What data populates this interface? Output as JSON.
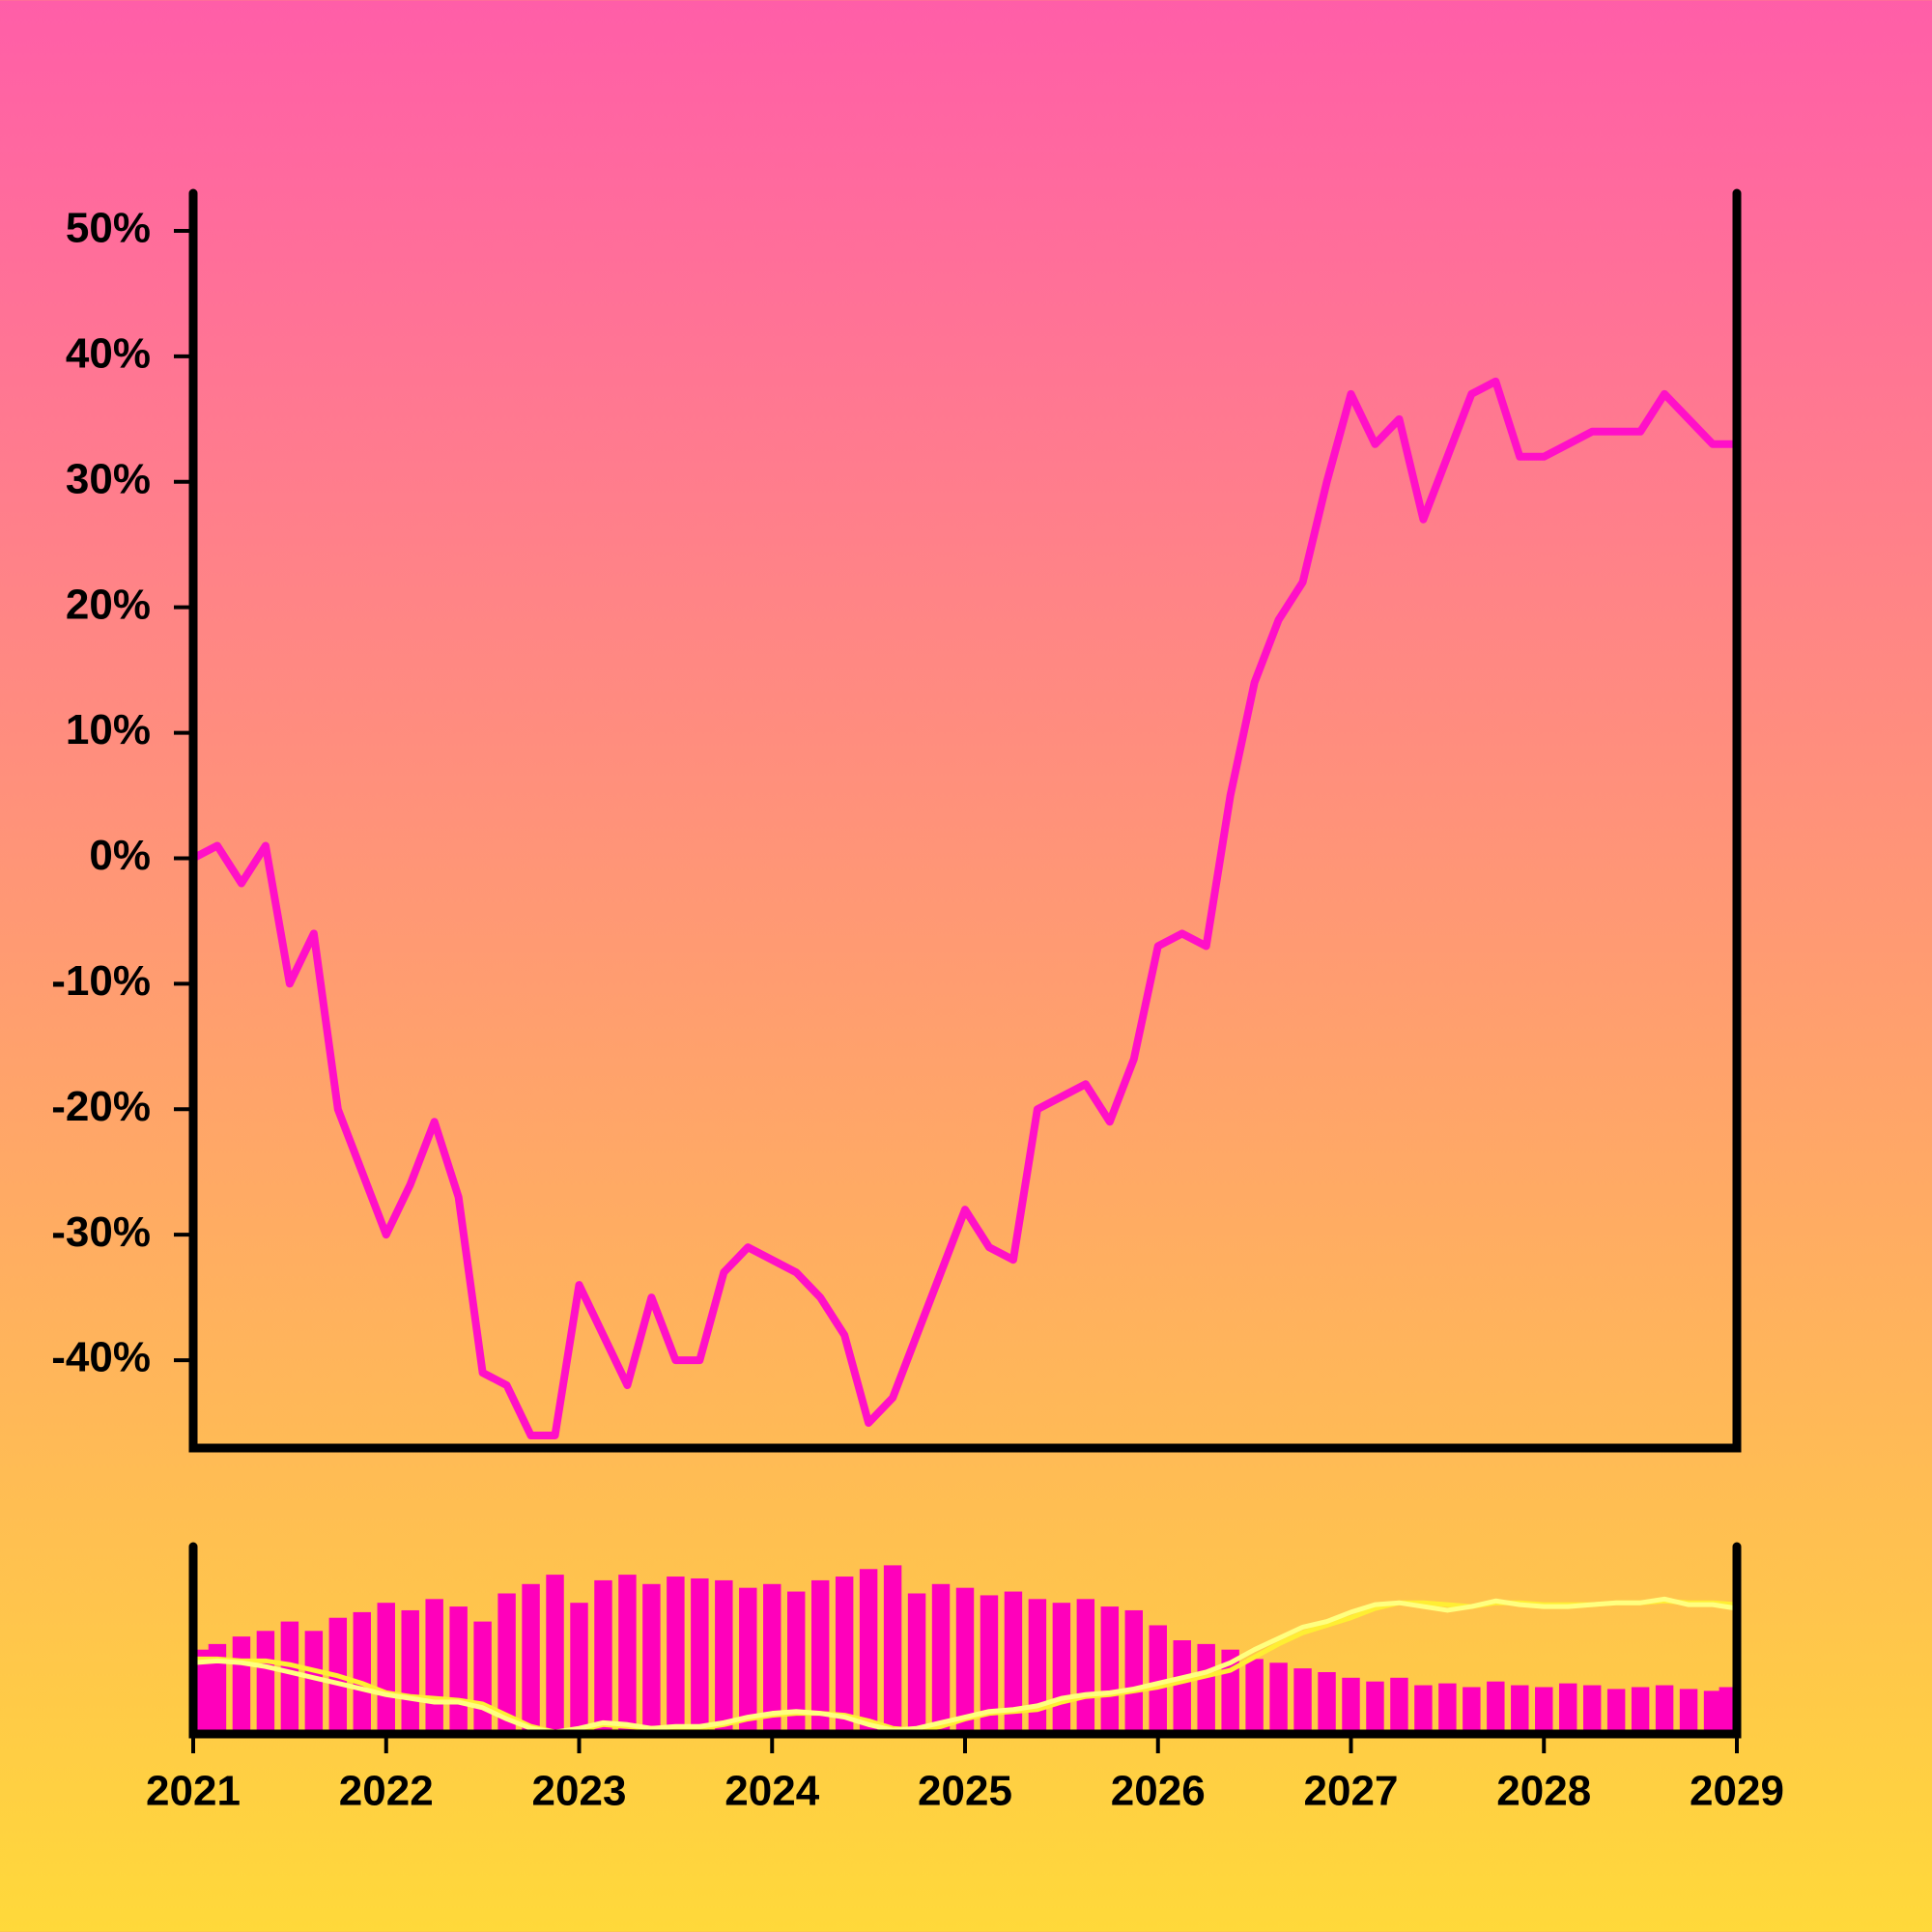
{
  "chart_data": [
    {
      "type": "line",
      "color": "#ff10c8",
      "x": [
        2021,
        2021.125,
        2021.25,
        2021.375,
        2021.5,
        2021.625,
        2021.75,
        2021.875,
        2022,
        2022.125,
        2022.25,
        2022.375,
        2022.5,
        2022.625,
        2022.75,
        2022.875,
        2023,
        2023.125,
        2023.25,
        2023.375,
        2023.5,
        2023.625,
        2023.75,
        2023.875,
        2024,
        2024.125,
        2024.25,
        2024.375,
        2024.5,
        2024.625,
        2024.75,
        2024.875,
        2025,
        2025.125,
        2025.25,
        2025.375,
        2025.5,
        2025.625,
        2025.75,
        2025.875,
        2026,
        2026.125,
        2026.25,
        2026.375,
        2026.5,
        2026.625,
        2026.75,
        2026.875,
        2027,
        2027.125,
        2027.25,
        2027.375,
        2027.5,
        2027.625,
        2027.75,
        2027.875,
        2028,
        2028.125,
        2028.25,
        2028.375,
        2028.5,
        2028.625,
        2028.75,
        2028.875,
        2029
      ],
      "values": [
        0,
        1,
        -2,
        1,
        -10,
        -6,
        -20,
        -25,
        -30,
        -26,
        -21,
        -27,
        -41,
        -42,
        -46,
        -46,
        -34,
        -38,
        -42,
        -35,
        -40,
        -40,
        -33,
        -31,
        -32,
        -33,
        -35,
        -38,
        -45,
        -43,
        -38,
        -33,
        -28,
        -31,
        -32,
        -20,
        -19,
        -18,
        -21,
        -16,
        -7,
        -6,
        -7,
        5,
        14,
        19,
        22,
        30,
        37,
        33,
        35,
        27,
        32,
        37,
        38,
        32,
        32,
        33,
        34,
        34,
        34,
        37,
        35,
        33,
        33
      ],
      "xlim": [
        2021,
        2029
      ],
      "ylim": [
        -47,
        53
      ],
      "yticks": [
        {
          "value": -40,
          "label": "-40%"
        },
        {
          "value": -30,
          "label": "-30%"
        },
        {
          "value": -20,
          "label": "-20%"
        },
        {
          "value": -10,
          "label": "-10%"
        },
        {
          "value": 0,
          "label": "0%"
        },
        {
          "value": 10,
          "label": "10%"
        },
        {
          "value": 20,
          "label": "20%"
        },
        {
          "value": 30,
          "label": "30%"
        },
        {
          "value": 40,
          "label": "40%"
        },
        {
          "value": 50,
          "label": "50%"
        }
      ]
    },
    {
      "type": "bar",
      "color": "#ff00bb",
      "x": [
        2021,
        2021.125,
        2021.25,
        2021.375,
        2021.5,
        2021.625,
        2021.75,
        2021.875,
        2022,
        2022.125,
        2022.25,
        2022.375,
        2022.5,
        2022.625,
        2022.75,
        2022.875,
        2023,
        2023.125,
        2023.25,
        2023.375,
        2023.5,
        2023.625,
        2023.75,
        2023.875,
        2024,
        2024.125,
        2024.25,
        2024.375,
        2024.5,
        2024.625,
        2024.75,
        2024.875,
        2025,
        2025.125,
        2025.25,
        2025.375,
        2025.5,
        2025.625,
        2025.75,
        2025.875,
        2026,
        2026.125,
        2026.25,
        2026.375,
        2026.5,
        2026.625,
        2026.75,
        2026.875,
        2027,
        2027.125,
        2027.25,
        2027.375,
        2027.5,
        2027.625,
        2027.75,
        2027.875,
        2028,
        2028.125,
        2028.25,
        2028.375,
        2028.5,
        2028.625,
        2028.75,
        2028.875,
        2029
      ],
      "values": [
        45,
        48,
        52,
        55,
        60,
        55,
        62,
        65,
        70,
        66,
        72,
        68,
        60,
        75,
        80,
        85,
        70,
        82,
        85,
        80,
        84,
        83,
        82,
        78,
        80,
        76,
        82,
        84,
        88,
        90,
        75,
        80,
        78,
        74,
        76,
        72,
        70,
        72,
        68,
        66,
        58,
        50,
        48,
        45,
        40,
        38,
        35,
        33,
        30,
        28,
        30,
        26,
        27,
        25,
        28,
        26,
        25,
        27,
        26,
        24,
        25,
        26,
        24,
        23,
        25
      ],
      "overlay": [
        {
          "color": "#ffee33",
          "values": [
            40,
            40,
            39,
            39,
            37,
            34,
            31,
            27,
            22,
            20,
            19,
            18,
            16,
            10,
            4,
            1,
            2,
            5,
            4,
            3,
            3,
            3,
            5,
            8,
            10,
            11,
            11,
            10,
            7,
            3,
            2,
            4,
            8,
            11,
            12,
            13,
            17,
            20,
            21,
            23,
            25,
            28,
            31,
            34,
            41,
            48,
            54,
            58,
            62,
            67,
            70,
            70,
            69,
            68,
            70,
            70,
            69,
            69,
            69,
            70,
            70,
            71,
            70,
            70,
            69
          ]
        },
        {
          "color": "#ffff80",
          "values": [
            38,
            39,
            38,
            36,
            33,
            30,
            27,
            24,
            21,
            19,
            17,
            17,
            14,
            8,
            3,
            1,
            3,
            6,
            5,
            3,
            4,
            4,
            6,
            9,
            11,
            12,
            11,
            9,
            5,
            2,
            3,
            6,
            9,
            12,
            13,
            15,
            19,
            21,
            22,
            24,
            27,
            30,
            33,
            38,
            45,
            51,
            57,
            60,
            65,
            69,
            70,
            68,
            66,
            68,
            71,
            69,
            68,
            68,
            69,
            70,
            70,
            72,
            69,
            69,
            67
          ]
        }
      ],
      "xlim": [
        2021,
        2029
      ],
      "ylim": [
        0,
        100
      ],
      "xticks": [
        2021,
        2022,
        2023,
        2024,
        2025,
        2026,
        2027,
        2028,
        2029
      ]
    }
  ]
}
